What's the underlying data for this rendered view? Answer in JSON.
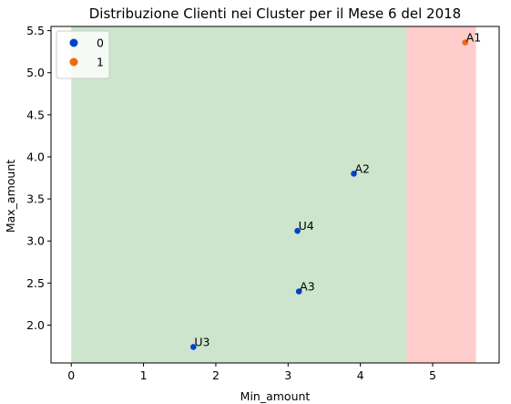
{
  "chart_data": {
    "type": "scatter",
    "title": "Distribuzione Clienti nei Cluster per il Mese 6 del 2018",
    "xlabel": "Min_amount",
    "ylabel": "Max_amount",
    "xlim": [
      -0.28,
      5.92
    ],
    "ylim": [
      1.55,
      5.55
    ],
    "x_ticks": [
      0,
      1,
      2,
      3,
      4,
      5
    ],
    "y_ticks": [
      2.0,
      2.5,
      3.0,
      3.5,
      4.0,
      4.5,
      5.0,
      5.5
    ],
    "x_tick_labels": [
      "0",
      "1",
      "2",
      "3",
      "4",
      "5"
    ],
    "y_tick_labels": [
      "2.0",
      "2.5",
      "3.0",
      "3.5",
      "4.0",
      "4.5",
      "5.0",
      "5.5"
    ],
    "grid": false,
    "legend_placement": "top-left",
    "regions": [
      {
        "cluster": "0",
        "x_from": 0.0,
        "x_to": 4.64,
        "color": "#cde5cd"
      },
      {
        "cluster": "1",
        "x_from": 4.64,
        "x_to": 5.6,
        "color": "#ffcccc"
      }
    ],
    "series": [
      {
        "name": "0",
        "color": "#0043c8",
        "points": [
          {
            "label": "A2",
            "x": 3.91,
            "y": 3.8
          },
          {
            "label": "U4",
            "x": 3.13,
            "y": 3.12
          },
          {
            "label": "A3",
            "x": 3.15,
            "y": 2.4
          },
          {
            "label": "U3",
            "x": 1.69,
            "y": 1.74
          }
        ]
      },
      {
        "name": "1",
        "color": "#f0680f",
        "points": [
          {
            "label": "A1",
            "x": 5.45,
            "y": 5.36
          }
        ]
      }
    ]
  }
}
